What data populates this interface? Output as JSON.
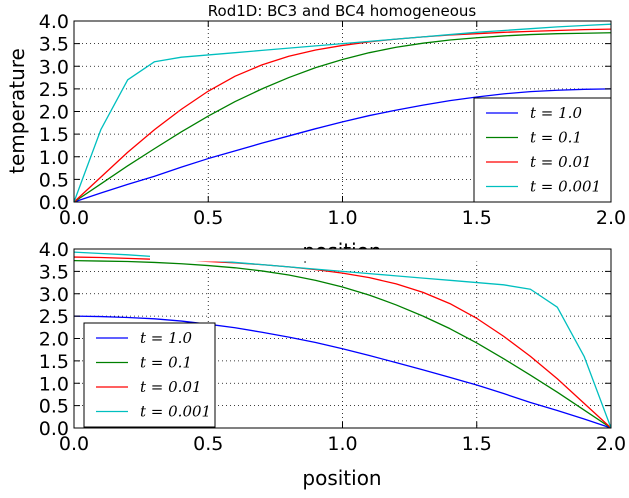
{
  "chart_data": [
    {
      "type": "line",
      "title": "Rod1D: BC3 and BC4 homogeneous",
      "xlabel": "position",
      "ylabel": "temperature",
      "xlim": [
        0.0,
        2.0
      ],
      "ylim": [
        0.0,
        4.0
      ],
      "x_ticks": [
        "0.0",
        "0.5",
        "1.0",
        "1.5",
        "2.0"
      ],
      "y_ticks": [
        "0.0",
        "0.5",
        "1.0",
        "1.5",
        "2.0",
        "2.5",
        "3.0",
        "3.5",
        "4.0"
      ],
      "grid": true,
      "legend_position": "lower-right",
      "x": [
        0.0,
        0.1,
        0.2,
        0.3,
        0.4,
        0.5,
        0.6,
        0.7,
        0.8,
        0.9,
        1.0,
        1.1,
        1.2,
        1.3,
        1.4,
        1.5,
        1.6,
        1.7,
        1.8,
        1.9,
        2.0
      ],
      "series": [
        {
          "name": "t = 1.0",
          "color": "#0000ff",
          "values": [
            0.0,
            0.2,
            0.39,
            0.57,
            0.77,
            0.96,
            1.13,
            1.3,
            1.46,
            1.62,
            1.77,
            1.91,
            2.03,
            2.14,
            2.24,
            2.32,
            2.39,
            2.44,
            2.47,
            2.49,
            2.5
          ]
        },
        {
          "name": "t = 0.1",
          "color": "#008000",
          "values": [
            0.0,
            0.4,
            0.8,
            1.18,
            1.55,
            1.9,
            2.22,
            2.5,
            2.75,
            2.97,
            3.15,
            3.3,
            3.42,
            3.51,
            3.58,
            3.63,
            3.67,
            3.7,
            3.72,
            3.73,
            3.74
          ]
        },
        {
          "name": "t = 0.01",
          "color": "#ff0000",
          "values": [
            0.0,
            0.55,
            1.1,
            1.6,
            2.05,
            2.45,
            2.78,
            3.03,
            3.22,
            3.36,
            3.46,
            3.54,
            3.6,
            3.65,
            3.69,
            3.72,
            3.75,
            3.77,
            3.79,
            3.81,
            3.82
          ]
        },
        {
          "name": "t = 0.001",
          "color": "#00bfbf",
          "values": [
            0.0,
            1.6,
            2.7,
            3.1,
            3.2,
            3.25,
            3.3,
            3.35,
            3.4,
            3.45,
            3.5,
            3.55,
            3.6,
            3.65,
            3.7,
            3.75,
            3.79,
            3.83,
            3.87,
            3.9,
            3.93
          ]
        }
      ]
    },
    {
      "type": "line",
      "title": "",
      "xlabel": "position",
      "ylabel": "",
      "xlim": [
        0.0,
        2.0
      ],
      "ylim": [
        0.0,
        4.0
      ],
      "x_ticks": [
        "0.0",
        "0.5",
        "1.0",
        "1.5",
        "2.0"
      ],
      "y_ticks": [
        "0.0",
        "0.5",
        "1.0",
        "1.5",
        "2.0",
        "2.5",
        "3.0",
        "3.5",
        "4.0"
      ],
      "grid": true,
      "legend_position": "lower-left",
      "x": [
        0.0,
        0.1,
        0.2,
        0.3,
        0.4,
        0.5,
        0.6,
        0.7,
        0.8,
        0.9,
        1.0,
        1.1,
        1.2,
        1.3,
        1.4,
        1.5,
        1.6,
        1.7,
        1.8,
        1.9,
        2.0
      ],
      "series": [
        {
          "name": "t = 1.0",
          "color": "#0000ff",
          "values": [
            2.5,
            2.49,
            2.47,
            2.44,
            2.39,
            2.32,
            2.24,
            2.14,
            2.03,
            1.91,
            1.77,
            1.62,
            1.46,
            1.3,
            1.13,
            0.96,
            0.77,
            0.57,
            0.39,
            0.2,
            0.0
          ]
        },
        {
          "name": "t = 0.1",
          "color": "#008000",
          "values": [
            3.74,
            3.73,
            3.72,
            3.7,
            3.67,
            3.63,
            3.58,
            3.51,
            3.42,
            3.3,
            3.15,
            2.97,
            2.75,
            2.5,
            2.22,
            1.9,
            1.55,
            1.18,
            0.8,
            0.4,
            0.0
          ]
        },
        {
          "name": "t = 0.01",
          "color": "#ff0000",
          "values": [
            3.82,
            3.81,
            3.79,
            3.77,
            3.75,
            3.72,
            3.69,
            3.65,
            3.6,
            3.54,
            3.46,
            3.36,
            3.22,
            3.03,
            2.78,
            2.45,
            2.05,
            1.6,
            1.1,
            0.55,
            0.0
          ]
        },
        {
          "name": "t = 0.001",
          "color": "#00bfbf",
          "values": [
            3.93,
            3.9,
            3.87,
            3.83,
            3.79,
            3.75,
            3.7,
            3.65,
            3.6,
            3.55,
            3.5,
            3.45,
            3.4,
            3.35,
            3.3,
            3.25,
            3.2,
            3.1,
            2.7,
            1.6,
            0.0
          ]
        }
      ]
    }
  ]
}
